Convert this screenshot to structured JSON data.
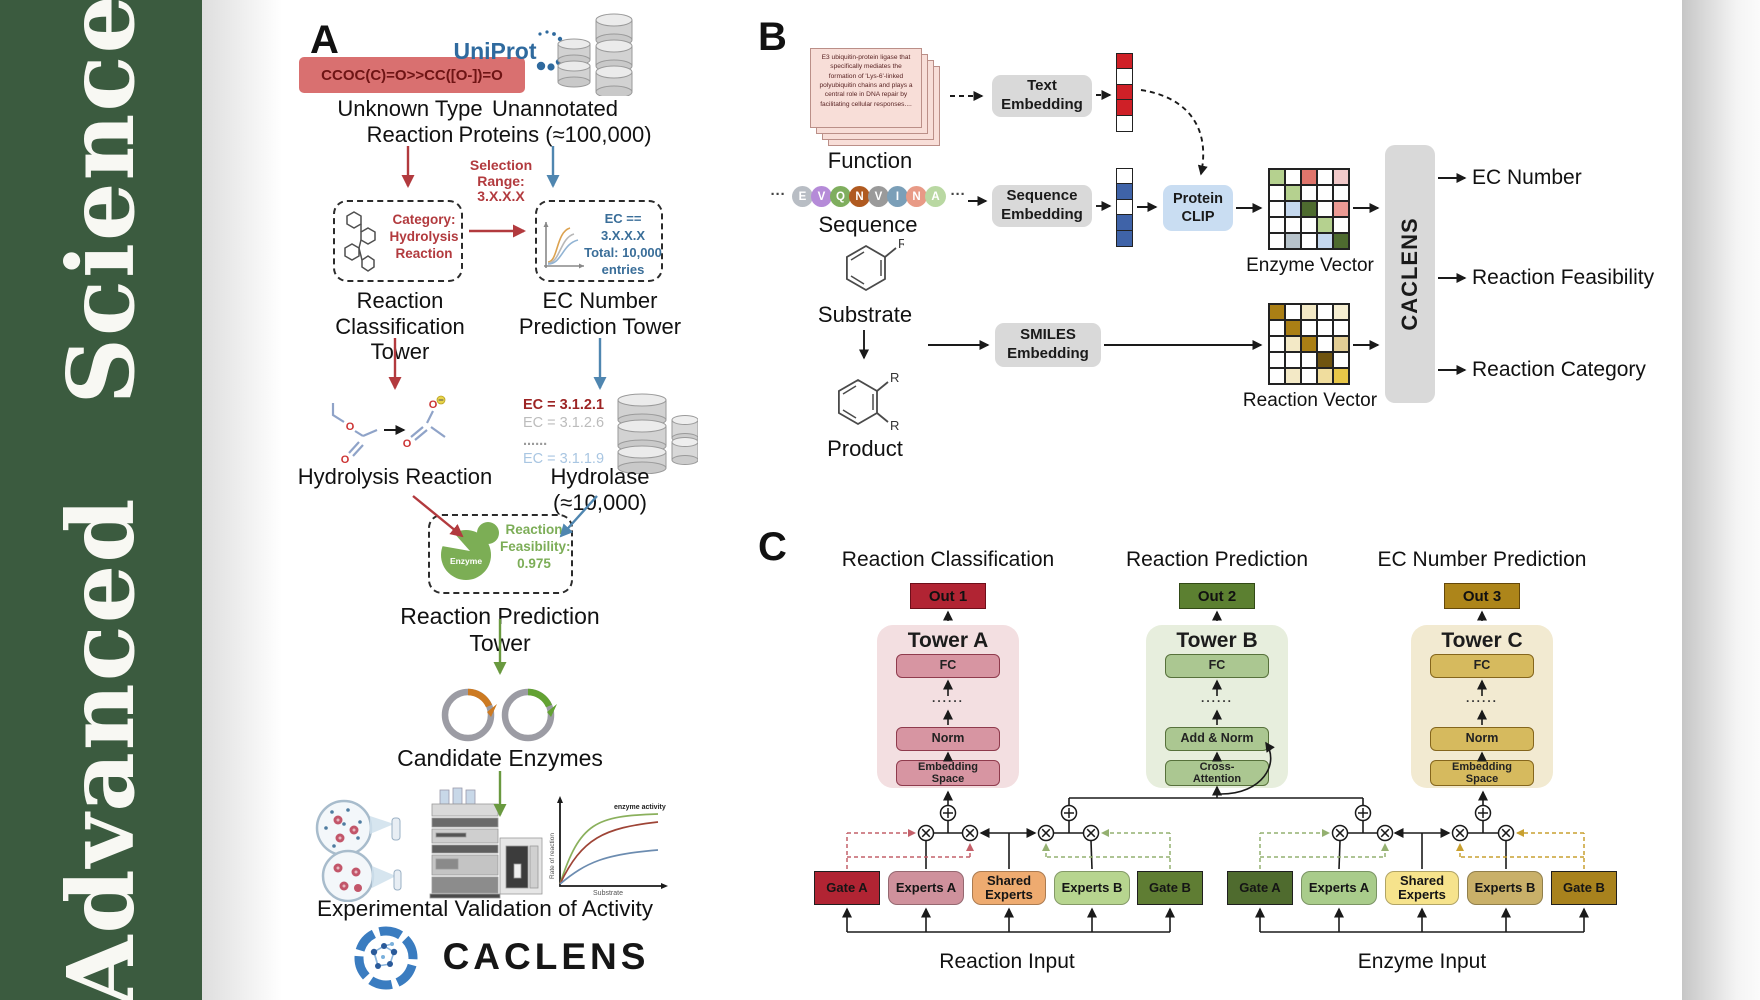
{
  "colors": {
    "sidebar_green": "#3b5b3f",
    "smiles_box_red": "#d97070",
    "accent_red": "#b23a3e",
    "accent_blue": "#4f86b0",
    "accent_green": "#69993f",
    "uniprot_blue": "#2f6a9e",
    "out1_red": "#b12433",
    "out2_green": "#5c8031",
    "out3_gold": "#ad851a"
  },
  "sidebar": {
    "journal_title": "Advanced Science"
  },
  "panel_a": {
    "label": "A",
    "smiles": "CCOC(C)=O>>CC([O-])=O",
    "unknown_reaction": "Unknown Type\nReaction",
    "uniprot": "UniProt",
    "unannotated": "Unannotated\nProteins (≈100,000)",
    "selection": "Selection\nRange:\n3.X.X.X",
    "category_box": "Category:\nHydrolysis\nReaction",
    "ec_box": "EC == 3.X.X.X\nTotal: 10,000\nentries",
    "classification_tower": "Reaction\nClassification Tower",
    "ec_tower": "EC Number\nPrediction Tower",
    "hydrolysis": "Hydrolysis Reaction",
    "hydrolase": "Hydrolase (≈10,000)",
    "ec_list": [
      "EC = 3.1.2.1",
      "EC = 3.1.2.6",
      "......",
      "EC = 3.1.1.9"
    ],
    "enzyme_badge": "Enzyme",
    "feasibility": "Reaction\nFeasibility:\n0.975",
    "prediction_tower": "Reaction Prediction Tower",
    "candidates": "Candidate Enzymes",
    "plot": {
      "ylabel": "Rate of reaction",
      "xlabel": "Substrate",
      "annotation": "enzyme activity"
    },
    "validation": "Experimental Validation of Activity",
    "brand": "CACLENS"
  },
  "panel_b": {
    "label": "B",
    "function_text": "E3 ubiquitin-protein ligase that specifically mediates the formation of 'Lys-6'-linked polyubiquitin chains and plays a central role in DNA repair by facilitating cellular responses....",
    "function": "Function",
    "sequence": "Sequence",
    "ellipsis": "···",
    "residues": [
      {
        "letter": "E",
        "color": "#b8bdc4"
      },
      {
        "letter": "V",
        "color": "#b58bd8"
      },
      {
        "letter": "Q",
        "color": "#7fae5e"
      },
      {
        "letter": "N",
        "color": "#b05a20"
      },
      {
        "letter": "V",
        "color": "#9a9a9a"
      },
      {
        "letter": "I",
        "color": "#7b9fb8"
      },
      {
        "letter": "N",
        "color": "#e89a86"
      },
      {
        "letter": "A",
        "color": "#b9d8a2"
      }
    ],
    "substrate": "Substrate",
    "product": "Product",
    "r_group": "R",
    "text_embedding": "Text\nEmbedding",
    "sequence_embedding": "Sequence\nEmbedding",
    "smiles_embedding": "SMILES\nEmbedding",
    "protein_clip": "Protein\nCLIP",
    "text_vector": [
      "#cf2027",
      "#ffffff",
      "#cf2027",
      "#cf2027",
      "#ffffff"
    ],
    "sequence_vector": [
      "#ffffff",
      "#3f63a8",
      "#ffffff",
      "#3f63a8",
      "#3f63a8"
    ],
    "enzyme_vector_label": "Enzyme Vector",
    "reaction_vector_label": "Reaction Vector",
    "enzyme_grid": [
      [
        "#b5d18f",
        "#ffffff",
        "#e0756c",
        "#ffffff",
        "#f2c9c9"
      ],
      [
        "#ffffff",
        "#b5d18f",
        "#ffffff",
        "#ffffff",
        "#ffffff"
      ],
      [
        "#ffffff",
        "#c5d8ee",
        "#4e6b2f",
        "#ffffff",
        "#ec9b94"
      ],
      [
        "#ffffff",
        "#ffffff",
        "#ffffff",
        "#b5d18f",
        "#ffffff"
      ],
      [
        "#ffffff",
        "#b7c3cb",
        "#ffffff",
        "#c5d8ee",
        "#4e6b2f"
      ]
    ],
    "reaction_grid": [
      [
        "#aa7f15",
        "#ffffff",
        "#f3e9c6",
        "#ffffff",
        "#f6efd2"
      ],
      [
        "#ffffff",
        "#aa7f15",
        "#ffffff",
        "#ffffff",
        "#ffffff"
      ],
      [
        "#ffffff",
        "#f3e9c6",
        "#aa7f15",
        "#ffffff",
        "#e2cd94"
      ],
      [
        "#ffffff",
        "#ffffff",
        "#ffffff",
        "#6f5410",
        "#ffffff"
      ],
      [
        "#ffffff",
        "#f3e9c6",
        "#ffffff",
        "#f0dd9e",
        "#e7c648"
      ]
    ],
    "caclens": "CACLENS",
    "outputs": [
      "EC Number",
      "Reaction Feasibility",
      "Reaction Category"
    ]
  },
  "panel_c": {
    "label": "C",
    "columns": [
      {
        "header": "Reaction Classification",
        "out": "Out 1",
        "tower": "Tower A",
        "fc": "FC",
        "dots": "......",
        "mid": "Norm",
        "bottom": "Embedding\nSpace"
      },
      {
        "header": "Reaction Prediction",
        "out": "Out 2",
        "tower": "Tower B",
        "fc": "FC",
        "dots": "......",
        "mid": "Add & Norm",
        "bottom": "Cross-\nAttention"
      },
      {
        "header": "EC Number Prediction",
        "out": "Out 3",
        "tower": "Tower C",
        "fc": "FC",
        "dots": "......",
        "mid": "Norm",
        "bottom": "Embedding\nSpace"
      }
    ],
    "moe": [
      {
        "gate_a": "Gate A",
        "experts_a": "Experts A",
        "shared": "Shared\nExperts",
        "experts_b": "Experts B",
        "gate_b": "Gate B",
        "input": "Reaction Input"
      },
      {
        "gate_a": "Gate A",
        "experts_a": "Experts A",
        "shared": "Shared\nExperts",
        "experts_b": "Experts B",
        "gate_b": "Gate B",
        "input": "Enzyme Input"
      }
    ]
  }
}
